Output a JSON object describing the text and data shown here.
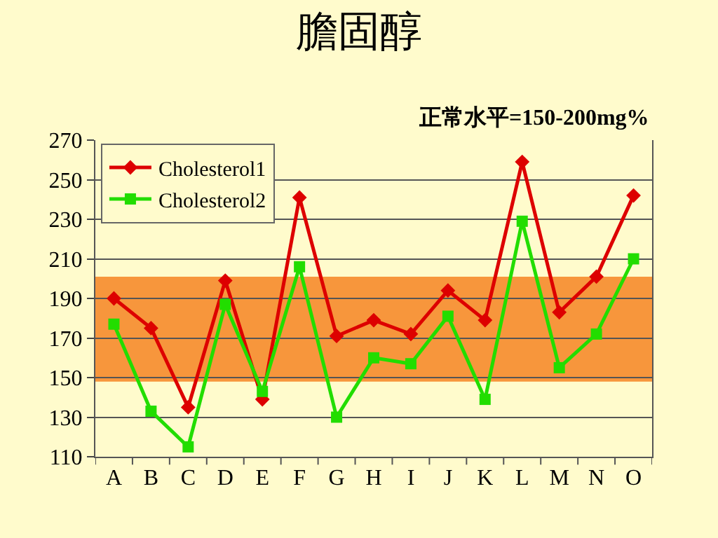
{
  "chart_data": {
    "type": "line",
    "title": "膽固醇",
    "subtitle": "正常水平=150-200mg%",
    "categories": [
      "A",
      "B",
      "C",
      "D",
      "E",
      "F",
      "G",
      "H",
      "I",
      "J",
      "K",
      "L",
      "M",
      "N",
      "O"
    ],
    "series": [
      {
        "name": "Cholesterol1",
        "color": "#dd0000",
        "marker": "diamond",
        "values": [
          190,
          175,
          135,
          199,
          139,
          241,
          171,
          179,
          172,
          194,
          179,
          259,
          183,
          201,
          242
        ]
      },
      {
        "name": "Cholesterol2",
        "color": "#22dd00",
        "marker": "square",
        "values": [
          177,
          133,
          115,
          187,
          143,
          206,
          130,
          160,
          157,
          181,
          139,
          229,
          155,
          172,
          210
        ]
      }
    ],
    "ylim": [
      110,
      270
    ],
    "yticks": [
      110,
      130,
      150,
      170,
      190,
      210,
      230,
      250,
      270
    ],
    "bands": [
      {
        "axis": "y",
        "from": 148,
        "to": 201,
        "color": "#f7963c"
      }
    ],
    "grid": "y",
    "legend": "top left",
    "line_style": "solid"
  }
}
